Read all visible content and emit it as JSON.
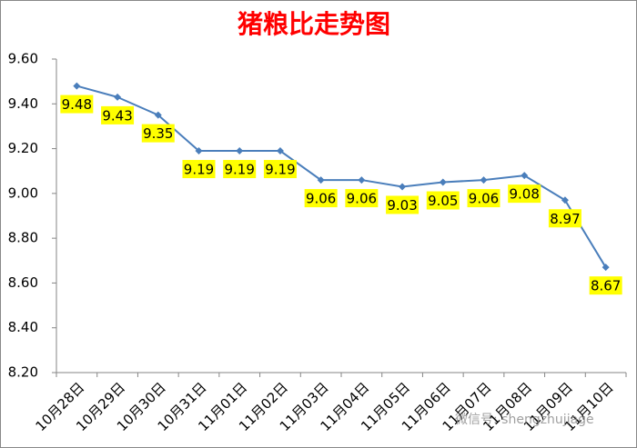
{
  "chart_data": {
    "type": "line",
    "title": "猪粮比走势图",
    "categories": [
      "10月28日",
      "10月29日",
      "10月30日",
      "10月31日",
      "11月01日",
      "11月02日",
      "11月03日",
      "11月04日",
      "11月05日",
      "11月06日",
      "11月07日",
      "11月08日",
      "11月09日",
      "11月10日"
    ],
    "series": [
      {
        "name": "猪粮比",
        "color": "#4a7ebb",
        "values": [
          9.48,
          9.43,
          9.35,
          9.19,
          9.19,
          9.19,
          9.06,
          9.06,
          9.03,
          9.05,
          9.06,
          9.08,
          8.97,
          8.67
        ]
      }
    ],
    "ylim": [
      8.2,
      9.6
    ],
    "yticks": [
      {
        "value": 8.2,
        "label": "8.20"
      },
      {
        "value": 8.4,
        "label": "8.40"
      },
      {
        "value": 8.6,
        "label": "8.60"
      },
      {
        "value": 8.8,
        "label": "8.80"
      },
      {
        "value": 9.0,
        "label": "9.00"
      },
      {
        "value": 9.2,
        "label": "9.20"
      },
      {
        "value": 9.4,
        "label": "9.40"
      },
      {
        "value": 9.6,
        "label": "9.60"
      }
    ],
    "label_color": "#ffff00",
    "watermark": "微信号: shengzhujiage"
  }
}
